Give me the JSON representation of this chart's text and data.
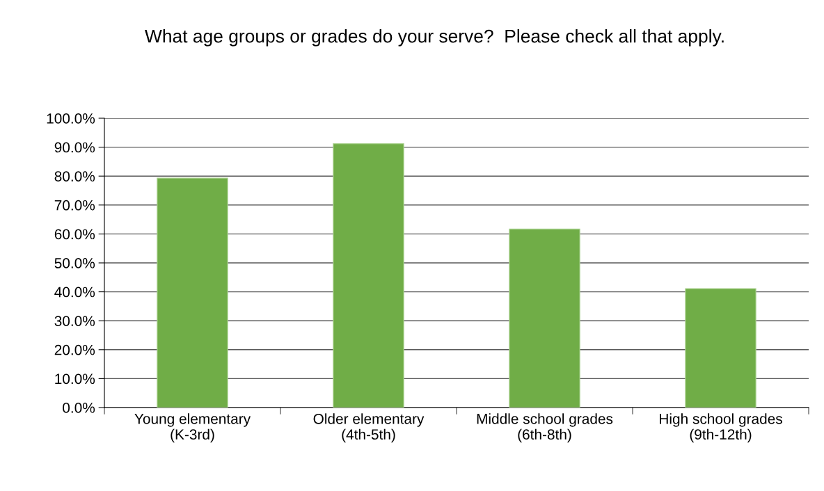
{
  "chart_data": {
    "type": "bar",
    "title": "What age groups or grades do your serve?  Please check all that apply.",
    "categories": [
      "Young elementary\n(K-3rd)",
      "Older elementary\n(4th-5th)",
      "Middle school grades\n(6th-8th)",
      "High school grades\n(9th-12th)"
    ],
    "values": [
      79.3,
      91.2,
      61.7,
      41.1
    ],
    "color": "#70ad47",
    "ylim": [
      0,
      100
    ],
    "yticks": [
      {
        "value": 0,
        "label": "0.0%"
      },
      {
        "value": 10,
        "label": "10.0%"
      },
      {
        "value": 20,
        "label": "20.0%"
      },
      {
        "value": 30,
        "label": "30.0%"
      },
      {
        "value": 40,
        "label": "40.0%"
      },
      {
        "value": 50,
        "label": "50.0%"
      },
      {
        "value": 60,
        "label": "60.0%"
      },
      {
        "value": 70,
        "label": "70.0%"
      },
      {
        "value": 80,
        "label": "80.0%"
      },
      {
        "value": 90,
        "label": "90.0%"
      },
      {
        "value": 100,
        "label": "100.0%"
      }
    ],
    "grid": "y"
  }
}
